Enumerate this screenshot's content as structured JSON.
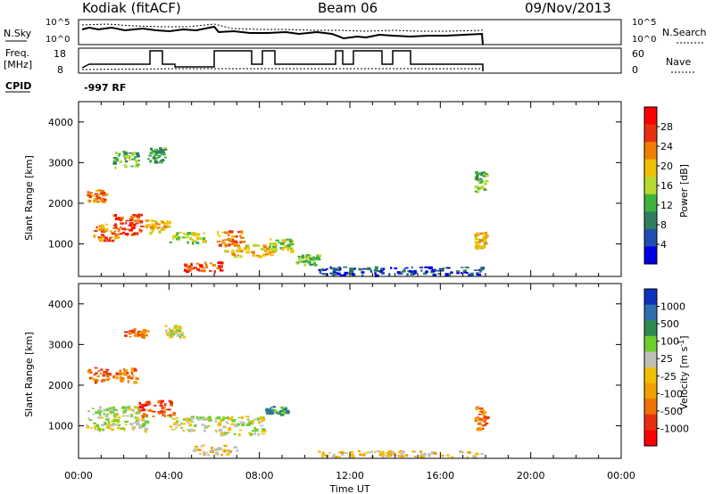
{
  "header": {
    "station": "Kodiak (fitACF)",
    "beam": "Beam 06",
    "date": "09/Nov/2013"
  },
  "top_panels": {
    "nsky_label": "N.Sky",
    "nsky_ticks": [
      "10^5",
      "10^0"
    ],
    "nsearch_label": "N.Search",
    "nsearch_ticks": [
      "10^5",
      "10^0"
    ],
    "freq_label_1": "Freq.",
    "freq_label_2": "[MHz]",
    "freq_ticks": [
      "18",
      "8"
    ],
    "nave_label": "Nave",
    "nave_ticks": [
      "60",
      "0"
    ],
    "cpid_label": "CPID",
    "cpid_value": "-997 RF"
  },
  "chart_data": [
    {
      "type": "heatmap",
      "name": "power",
      "ylabel": "Slant Range [km]",
      "ylim": [
        200,
        4500
      ],
      "yticks": [
        "1000",
        "2000",
        "3000",
        "4000"
      ],
      "xlim": [
        0,
        24
      ],
      "colorbar_label": "Power [dB]",
      "colorbar_ticks": [
        "4",
        "8",
        "12",
        "16",
        "20",
        "24",
        "28"
      ],
      "colors": [
        "#0000e6",
        "#1f4fb0",
        "#2e7d5e",
        "#3cb43c",
        "#b8d92e",
        "#f0c000",
        "#f08000",
        "#e83010",
        "#ff0000"
      ],
      "regions": [
        {
          "t0": 0.3,
          "t1": 1.2,
          "r0": 2050,
          "r1": 2350,
          "level": 6
        },
        {
          "t0": 0.6,
          "t1": 1.8,
          "r0": 1100,
          "r1": 1500,
          "level": 6
        },
        {
          "t0": 1.4,
          "t1": 2.8,
          "r0": 1250,
          "r1": 1750,
          "level": 7
        },
        {
          "t0": 2.9,
          "t1": 4.0,
          "r0": 1300,
          "r1": 1600,
          "level": 5
        },
        {
          "t0": 4.0,
          "t1": 5.6,
          "r0": 1050,
          "r1": 1300,
          "level": 4
        },
        {
          "t0": 6.1,
          "t1": 7.2,
          "r0": 1000,
          "r1": 1350,
          "level": 6
        },
        {
          "t0": 4.6,
          "t1": 6.4,
          "r0": 350,
          "r1": 600,
          "level": 7
        },
        {
          "t0": 6.4,
          "t1": 8.6,
          "r0": 700,
          "r1": 1000,
          "level": 5
        },
        {
          "t0": 8.4,
          "t1": 9.4,
          "r0": 850,
          "r1": 1150,
          "level": 4
        },
        {
          "t0": 9.6,
          "t1": 10.6,
          "r0": 500,
          "r1": 750,
          "level": 3
        },
        {
          "t0": 10.5,
          "t1": 17.8,
          "r0": 250,
          "r1": 450,
          "level": 1
        },
        {
          "t0": 17.5,
          "t1": 18.0,
          "r0": 900,
          "r1": 1300,
          "level": 5
        },
        {
          "t0": 17.5,
          "t1": 18.0,
          "r0": 2300,
          "r1": 2800,
          "level": 3
        },
        {
          "t0": 1.5,
          "t1": 2.6,
          "r0": 2900,
          "r1": 3300,
          "level": 3
        },
        {
          "t0": 3.0,
          "t1": 3.8,
          "r0": 3000,
          "r1": 3400,
          "level": 3
        }
      ]
    },
    {
      "type": "heatmap",
      "name": "velocity",
      "ylabel": "Slant Range [km]",
      "ylim": [
        200,
        4500
      ],
      "yticks": [
        "1000",
        "2000",
        "3000",
        "4000"
      ],
      "xlim": [
        0,
        24
      ],
      "xlabel": "Time UT",
      "xticks": [
        "00:00",
        "04:00",
        "08:00",
        "12:00",
        "16:00",
        "20:00",
        "00:00"
      ],
      "colorbar_label": "Velocity [m s",
      "colorbar_label_sup": "-1",
      "colorbar_label_end": "]",
      "colorbar_ticks": [
        "1000",
        "500",
        "100",
        "25",
        "-25",
        "-100",
        "-500",
        "-1000"
      ],
      "colors": [
        "#1030c0",
        "#2e6fb0",
        "#2e8a50",
        "#6ccf2e",
        "#c0c0b8",
        "#f0c000",
        "#f0a000",
        "#f07000",
        "#e83010",
        "#ff0000"
      ],
      "regions": [
        {
          "t0": 0.3,
          "t1": 2.6,
          "r0": 2100,
          "r1": 2450,
          "level": 7
        },
        {
          "t0": 0.3,
          "t1": 3.0,
          "r0": 900,
          "r1": 1500,
          "level": 4
        },
        {
          "t0": 2.6,
          "t1": 4.2,
          "r0": 1250,
          "r1": 1650,
          "level": 8
        },
        {
          "t0": 4.0,
          "t1": 5.8,
          "r0": 900,
          "r1": 1250,
          "level": 4
        },
        {
          "t0": 6.0,
          "t1": 8.2,
          "r0": 800,
          "r1": 1250,
          "level": 4
        },
        {
          "t0": 5.0,
          "t1": 7.0,
          "r0": 300,
          "r1": 550,
          "level": 5
        },
        {
          "t0": 8.2,
          "t1": 9.2,
          "r0": 1300,
          "r1": 1500,
          "level": 2
        },
        {
          "t0": 10.5,
          "t1": 17.8,
          "r0": 250,
          "r1": 400,
          "level": 5
        },
        {
          "t0": 17.5,
          "t1": 18.0,
          "r0": 900,
          "r1": 1500,
          "level": 7
        },
        {
          "t0": 2.0,
          "t1": 3.0,
          "r0": 3200,
          "r1": 3400,
          "level": 7
        },
        {
          "t0": 3.8,
          "t1": 4.6,
          "r0": 3200,
          "r1": 3500,
          "level": 4
        }
      ]
    }
  ]
}
